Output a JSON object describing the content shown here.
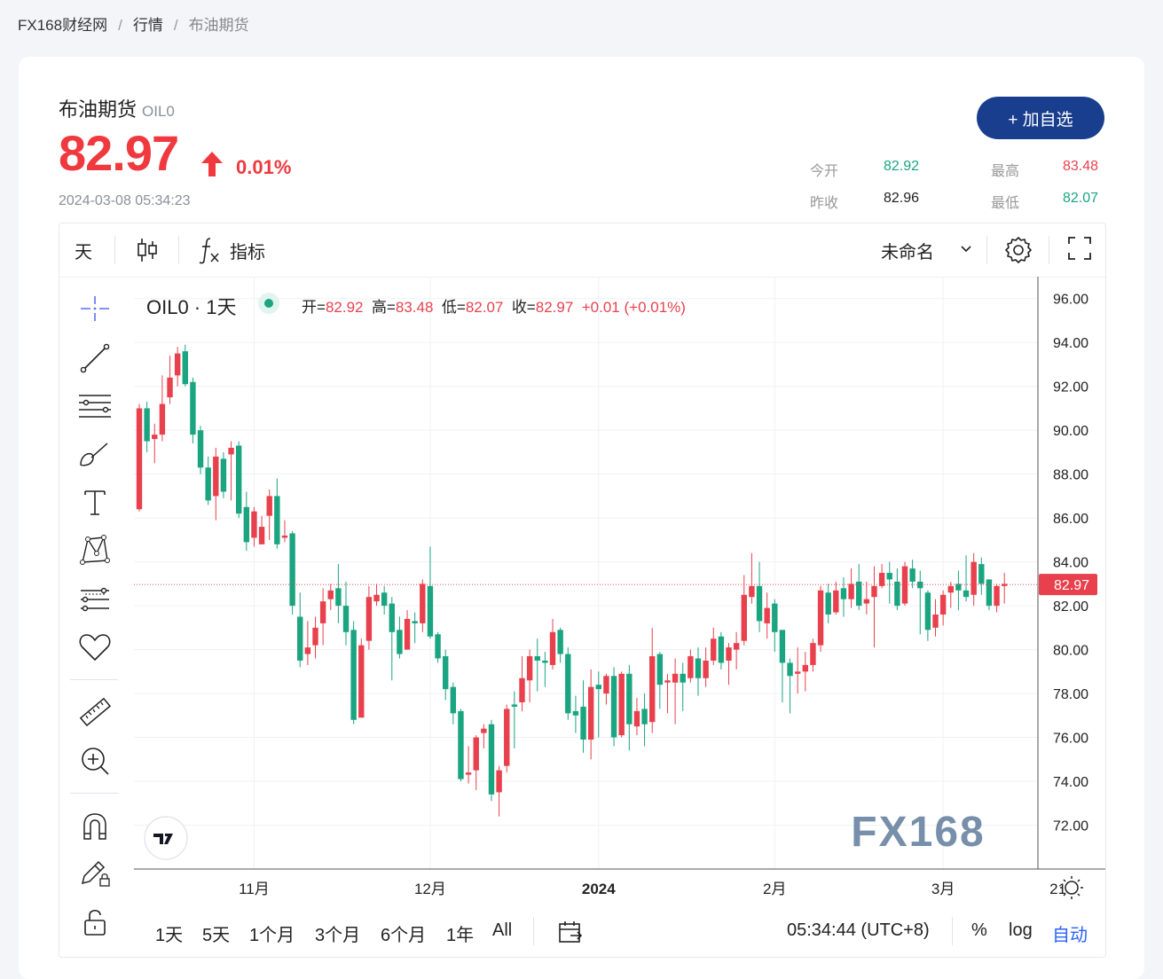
{
  "breadcrumb": [
    "FX168财经网",
    "行情",
    "布油期货"
  ],
  "quote": {
    "name": "布油期货",
    "code": "OIL0",
    "price": "82.97",
    "change_pct": "0.01%",
    "timestamp": "2024-03-08 05:34:23",
    "add_button": "+ 加自选",
    "stats": [
      {
        "label": "今开",
        "value": "82.92",
        "color": "#1aa580"
      },
      {
        "label": "最高",
        "value": "83.48",
        "color": "#e8414d"
      },
      {
        "label": "昨收",
        "value": "82.96",
        "color": "#222222"
      },
      {
        "label": "最低",
        "value": "82.07",
        "color": "#1aa580"
      }
    ]
  },
  "toolbar": {
    "interval": "天",
    "indicators": "指标",
    "layout_name": "未命名"
  },
  "legend": {
    "symbol": "OIL0 · 1天",
    "open_label": "开=",
    "open": "82.92",
    "high_label": "高=",
    "high": "83.48",
    "low_label": "低=",
    "low": "82.07",
    "close_label": "收=",
    "close": "82.97",
    "change": "+0.01 (+0.01%)"
  },
  "bottombar": {
    "ranges": [
      "1天",
      "5天",
      "1个月",
      "3个月",
      "6个月",
      "1年",
      "All"
    ],
    "clock": "05:34:44 (UTC+8)",
    "percent": "%",
    "log": "log",
    "auto": "自动"
  },
  "colors": {
    "up": "#e8414d",
    "down": "#1aa580",
    "accent": "#1a3e8e"
  },
  "chart_data": {
    "type": "candlestick",
    "ylim": [
      70,
      97
    ],
    "yticks": [
      "96.00",
      "94.00",
      "92.00",
      "90.00",
      "88.00",
      "86.00",
      "84.00",
      "82.00",
      "80.00",
      "78.00",
      "76.00",
      "74.00",
      "72.00"
    ],
    "xlabels": [
      {
        "label": "11月",
        "index": 15
      },
      {
        "label": "12月",
        "index": 38
      },
      {
        "label": "2024",
        "index": 60
      },
      {
        "label": "2月",
        "index": 83
      },
      {
        "label": "3月",
        "index": 105
      },
      {
        "label": "21",
        "index": 120
      }
    ],
    "last_price": "82.97",
    "watermark": "FX168",
    "candles": [
      [
        86.4,
        91.0,
        91.2,
        86.3
      ],
      [
        91.0,
        89.5,
        91.3,
        89.0
      ],
      [
        89.6,
        89.8,
        90.3,
        88.5
      ],
      [
        89.8,
        91.2,
        92.5,
        89.5
      ],
      [
        91.5,
        92.4,
        93.4,
        91.2
      ],
      [
        92.5,
        93.5,
        93.8,
        92.0
      ],
      [
        93.6,
        92.1,
        93.9,
        92.0
      ],
      [
        92.2,
        89.8,
        92.4,
        89.4
      ],
      [
        90.0,
        88.3,
        90.2,
        88.0
      ],
      [
        88.3,
        86.8,
        88.8,
        86.6
      ],
      [
        87.0,
        88.8,
        89.2,
        85.9
      ],
      [
        88.7,
        87.2,
        89.0,
        86.9
      ],
      [
        88.9,
        89.2,
        89.5,
        86.8
      ],
      [
        89.3,
        86.2,
        89.5,
        86.0
      ],
      [
        86.5,
        84.9,
        87.2,
        84.5
      ],
      [
        85.1,
        86.3,
        86.5,
        84.7
      ],
      [
        84.8,
        85.6,
        86.1,
        84.8
      ],
      [
        86.1,
        87.0,
        87.3,
        85.0
      ],
      [
        87.0,
        84.8,
        87.8,
        84.6
      ],
      [
        85.1,
        85.2,
        85.9,
        84.9
      ],
      [
        85.3,
        82.0,
        85.4,
        81.6
      ],
      [
        81.5,
        79.5,
        82.6,
        79.2
      ],
      [
        79.8,
        80.1,
        81.3,
        79.3
      ],
      [
        80.2,
        81.0,
        81.5,
        79.6
      ],
      [
        81.2,
        82.2,
        82.8,
        80.2
      ],
      [
        82.3,
        82.7,
        83.0,
        81.8
      ],
      [
        82.8,
        82.0,
        83.9,
        81.2
      ],
      [
        82.0,
        80.8,
        83.1,
        80.2
      ],
      [
        80.9,
        76.8,
        81.3,
        76.6
      ],
      [
        76.9,
        80.2,
        80.5,
        77.4
      ],
      [
        80.4,
        82.4,
        82.9,
        80.0
      ],
      [
        82.2,
        82.5,
        83.0,
        82.0
      ],
      [
        82.6,
        82.0,
        82.9,
        81.6
      ],
      [
        82.1,
        80.8,
        82.4,
        78.6
      ],
      [
        80.9,
        79.8,
        81.5,
        79.6
      ],
      [
        80.0,
        81.4,
        81.8,
        80.0
      ],
      [
        81.3,
        81.2,
        81.7,
        80.3
      ],
      [
        81.2,
        83.0,
        83.2,
        80.8
      ],
      [
        82.9,
        80.6,
        84.7,
        80.5
      ],
      [
        80.7,
        79.6,
        80.8,
        79.4
      ],
      [
        79.7,
        78.2,
        80.0,
        77.7
      ],
      [
        78.3,
        77.1,
        78.5,
        76.6
      ],
      [
        77.2,
        74.1,
        77.3,
        74.0
      ],
      [
        74.3,
        74.4,
        75.6,
        73.9
      ],
      [
        74.5,
        76.0,
        76.1,
        73.6
      ],
      [
        76.2,
        76.4,
        76.6,
        75.5
      ],
      [
        76.6,
        73.4,
        76.8,
        73.1
      ],
      [
        73.5,
        74.5,
        74.7,
        72.4
      ],
      [
        74.7,
        77.3,
        77.5,
        74.4
      ],
      [
        77.5,
        77.4,
        78.1,
        75.5
      ],
      [
        77.6,
        78.7,
        79.7,
        77.2
      ],
      [
        78.6,
        79.7,
        80.0,
        77.6
      ],
      [
        79.7,
        79.5,
        80.5,
        78.1
      ],
      [
        79.5,
        79.4,
        79.9,
        78.3
      ],
      [
        79.3,
        80.8,
        81.4,
        79.1
      ],
      [
        80.9,
        79.8,
        81.0,
        79.4
      ],
      [
        79.8,
        77.1,
        80.1,
        76.8
      ],
      [
        77.2,
        77.0,
        77.9,
        76.2
      ],
      [
        77.4,
        75.9,
        78.6,
        75.3
      ],
      [
        75.9,
        78.3,
        79.1,
        75.0
      ],
      [
        78.4,
        78.2,
        79.0,
        76.0
      ],
      [
        78.0,
        78.8,
        78.9,
        77.5
      ],
      [
        78.8,
        76.0,
        79.2,
        75.6
      ],
      [
        76.1,
        78.9,
        79.0,
        76.0
      ],
      [
        78.9,
        76.6,
        79.3,
        75.4
      ],
      [
        76.5,
        77.2,
        77.8,
        76.1
      ],
      [
        77.3,
        76.6,
        78.0,
        75.6
      ],
      [
        76.7,
        79.7,
        81.0,
        76.2
      ],
      [
        79.8,
        78.4,
        79.9,
        77.3
      ],
      [
        78.5,
        78.6,
        78.9,
        77.1
      ],
      [
        78.5,
        78.9,
        79.6,
        76.6
      ],
      [
        78.9,
        78.5,
        79.4,
        77.2
      ],
      [
        78.7,
        79.7,
        80.0,
        78.5
      ],
      [
        79.6,
        78.7,
        80.1,
        77.9
      ],
      [
        78.7,
        79.5,
        80.1,
        78.3
      ],
      [
        79.5,
        80.5,
        81.0,
        79.3
      ],
      [
        80.6,
        79.4,
        80.8,
        79.1
      ],
      [
        79.5,
        80.1,
        80.3,
        78.4
      ],
      [
        80.0,
        80.3,
        80.8,
        79.1
      ],
      [
        80.4,
        82.5,
        83.4,
        80.2
      ],
      [
        82.4,
        82.9,
        84.4,
        82.1
      ],
      [
        82.9,
        81.3,
        84.0,
        80.8
      ],
      [
        81.2,
        81.9,
        82.6,
        80.5
      ],
      [
        82.1,
        80.8,
        82.3,
        79.9
      ],
      [
        80.9,
        79.4,
        80.9,
        77.6
      ],
      [
        79.4,
        78.8,
        79.6,
        77.1
      ],
      [
        78.9,
        79.0,
        80.1,
        78.0
      ],
      [
        79.0,
        79.3,
        79.9,
        78.1
      ],
      [
        79.3,
        80.3,
        80.5,
        79.0
      ],
      [
        80.2,
        82.7,
        82.9,
        79.9
      ],
      [
        82.6,
        81.6,
        83.0,
        81.2
      ],
      [
        81.7,
        82.7,
        83.1,
        81.6
      ],
      [
        82.8,
        82.3,
        83.3,
        81.5
      ],
      [
        82.3,
        83.0,
        83.7,
        81.9
      ],
      [
        83.1,
        82.0,
        83.9,
        81.8
      ],
      [
        82.1,
        82.3,
        83.1,
        81.6
      ],
      [
        82.4,
        82.9,
        83.8,
        80.1
      ],
      [
        82.9,
        83.5,
        83.9,
        82.8
      ],
      [
        83.5,
        83.2,
        84.0,
        82.1
      ],
      [
        83.1,
        82.0,
        83.7,
        81.8
      ],
      [
        82.1,
        83.8,
        84.0,
        82.0
      ],
      [
        83.7,
        83.1,
        84.1,
        82.8
      ],
      [
        83.1,
        82.8,
        83.6,
        80.7
      ],
      [
        82.6,
        80.9,
        82.7,
        80.4
      ],
      [
        81.0,
        81.6,
        82.3,
        80.6
      ],
      [
        81.6,
        82.5,
        82.7,
        81.1
      ],
      [
        82.6,
        82.9,
        83.1,
        81.9
      ],
      [
        83.0,
        82.7,
        83.6,
        81.8
      ],
      [
        82.7,
        82.4,
        84.3,
        82.2
      ],
      [
        82.5,
        84.0,
        84.4,
        82.0
      ],
      [
        83.9,
        83.0,
        84.2,
        82.5
      ],
      [
        83.2,
        82.0,
        83.2,
        81.8
      ],
      [
        82.0,
        82.9,
        83.0,
        81.7
      ],
      [
        82.9,
        83.0,
        83.5,
        82.1
      ]
    ]
  }
}
